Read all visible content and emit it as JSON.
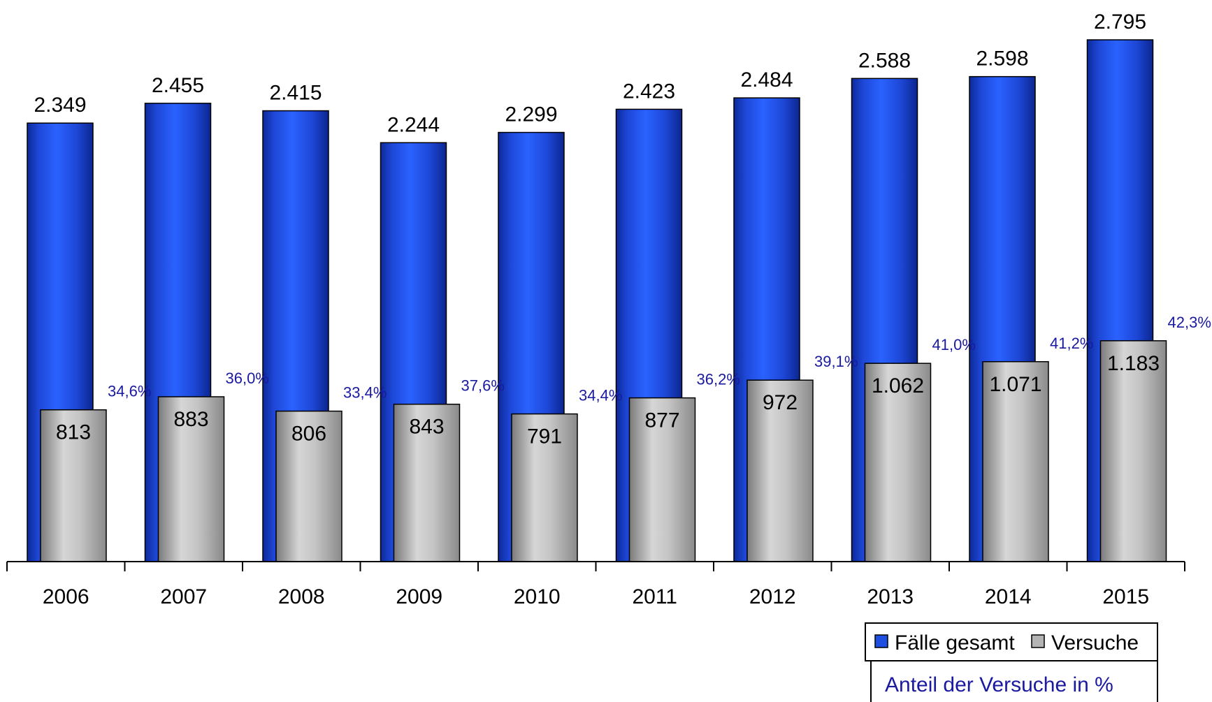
{
  "chart_data": {
    "type": "bar",
    "categories": [
      "2006",
      "2007",
      "2008",
      "2009",
      "2010",
      "2011",
      "2012",
      "2013",
      "2014",
      "2015"
    ],
    "series": [
      {
        "name": "Fälle gesamt",
        "color": "#1f4fe0",
        "values": [
          2349,
          2455,
          2415,
          2244,
          2299,
          2423,
          2484,
          2588,
          2598,
          2795
        ],
        "labels": [
          "2.349",
          "2.455",
          "2.415",
          "2.244",
          "2.299",
          "2.423",
          "2.484",
          "2.588",
          "2.598",
          "2.795"
        ]
      },
      {
        "name": "Versuche",
        "color": "#b4b4b4",
        "values": [
          813,
          883,
          806,
          843,
          791,
          877,
          972,
          1062,
          1071,
          1183
        ],
        "labels": [
          "813",
          "883",
          "806",
          "843",
          "791",
          "877",
          "972",
          "1.062",
          "1.071",
          "1.183"
        ]
      }
    ],
    "share_labels": [
      "34,6%",
      "36,0%",
      "33,4%",
      "37,6%",
      "34,4%",
      "36,2%",
      "39,1%",
      "41,0%",
      "41,2%",
      "42,3%"
    ],
    "share_legend": "Anteil der Versuche in %",
    "ylim": [
      0,
      2800
    ],
    "grid": false,
    "legend_position": "bottom-right"
  }
}
